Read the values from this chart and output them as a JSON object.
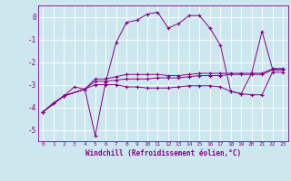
{
  "xlabel": "Windchill (Refroidissement éolien,°C)",
  "background_color": "#cce8ee",
  "line_color": "#880088",
  "xlim": [
    -0.5,
    23.5
  ],
  "ylim": [
    -5.5,
    0.5
  ],
  "yticks": [
    0,
    -1,
    -2,
    -3,
    -4,
    -5
  ],
  "xticks": [
    0,
    1,
    2,
    3,
    4,
    5,
    6,
    7,
    8,
    9,
    10,
    11,
    12,
    13,
    14,
    15,
    16,
    17,
    18,
    19,
    20,
    21,
    22,
    23
  ],
  "series": [
    {
      "x": [
        0,
        1,
        2,
        3,
        4,
        5,
        6,
        7,
        8,
        9,
        10,
        11,
        12,
        13,
        14,
        15,
        16,
        17,
        18,
        19,
        20,
        21,
        22,
        23
      ],
      "y": [
        -4.2,
        -3.8,
        -3.5,
        -3.1,
        -3.2,
        -5.25,
        -2.9,
        -1.15,
        -0.25,
        -0.15,
        0.12,
        0.2,
        -0.5,
        -0.3,
        0.05,
        0.05,
        -0.5,
        -1.25,
        -3.3,
        -3.4,
        -2.5,
        -0.65,
        -2.3,
        -2.3
      ]
    },
    {
      "x": [
        0,
        2,
        4,
        5,
        6,
        7,
        8,
        9,
        10,
        11,
        12,
        13,
        14,
        15,
        16,
        17,
        18,
        19,
        20,
        21,
        22,
        23
      ],
      "y": [
        -4.2,
        -3.5,
        -3.2,
        -2.75,
        -2.75,
        -2.65,
        -2.55,
        -2.55,
        -2.55,
        -2.55,
        -2.6,
        -2.6,
        -2.55,
        -2.5,
        -2.5,
        -2.5,
        -2.5,
        -2.5,
        -2.5,
        -2.5,
        -2.3,
        -2.3
      ]
    },
    {
      "x": [
        0,
        2,
        4,
        5,
        6,
        7,
        8,
        9,
        10,
        11,
        12,
        13,
        14,
        15,
        16,
        17,
        18,
        19,
        20,
        21,
        22,
        23
      ],
      "y": [
        -4.2,
        -3.5,
        -3.2,
        -2.85,
        -2.85,
        -2.8,
        -2.75,
        -2.75,
        -2.75,
        -2.7,
        -2.7,
        -2.7,
        -2.65,
        -2.6,
        -2.6,
        -2.6,
        -2.55,
        -2.55,
        -2.55,
        -2.55,
        -2.35,
        -2.35
      ]
    },
    {
      "x": [
        0,
        2,
        4,
        5,
        6,
        7,
        8,
        9,
        10,
        11,
        12,
        13,
        14,
        15,
        16,
        17,
        18,
        19,
        20,
        21,
        22,
        23
      ],
      "y": [
        -4.2,
        -3.5,
        -3.2,
        -3.0,
        -3.0,
        -3.0,
        -3.1,
        -3.1,
        -3.15,
        -3.15,
        -3.15,
        -3.1,
        -3.05,
        -3.05,
        -3.05,
        -3.1,
        -3.3,
        -3.4,
        -3.45,
        -3.45,
        -2.45,
        -2.45
      ]
    }
  ]
}
